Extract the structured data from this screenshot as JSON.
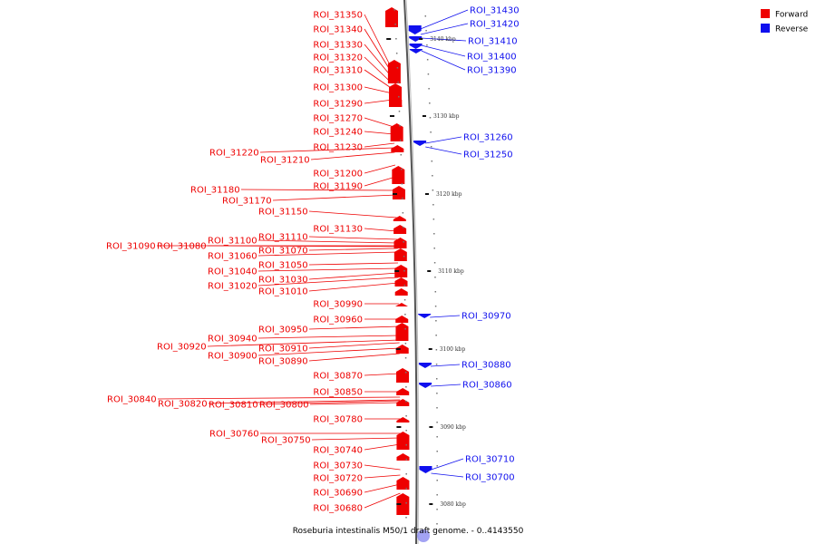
{
  "colors": {
    "forward": "#ee0000",
    "reverse": "#1010ee",
    "axis": "#888888"
  },
  "caption": "Roseburia intestinalis M50/1 draft genome. - 0..4143550",
  "legend": [
    {
      "label": "Forward",
      "color": "#ee0000"
    },
    {
      "label": "Reverse",
      "color": "#1010ee"
    }
  ],
  "ticks": [
    "3140 kbp",
    "3130 kbp",
    "3120 kbp",
    "3110 kbp",
    "3100 kbp",
    "3090 kbp",
    "3080 kbp"
  ],
  "forward_labels": [
    "ROI_31350",
    "ROI_31340",
    "ROI_31330",
    "ROI_31320",
    "ROI_31310",
    "ROI_31300",
    "ROI_31290",
    "ROI_31270",
    "ROI_31240",
    "ROI_31230",
    "ROI_31220",
    "ROI_31210",
    "ROI_31200",
    "ROI_31190",
    "ROI_31180",
    "ROI_31170",
    "ROI_31150",
    "ROI_31130",
    "ROI_31110",
    "ROI_31100",
    "ROI_31090",
    "ROI_31080",
    "ROI_31070",
    "ROI_31060",
    "ROI_31050",
    "ROI_31040",
    "ROI_31030",
    "ROI_31020",
    "ROI_31010",
    "ROI_30990",
    "ROI_30960",
    "ROI_30950",
    "ROI_30940",
    "ROI_30920",
    "ROI_30910",
    "ROI_30900",
    "ROI_30890",
    "ROI_30870",
    "ROI_30850",
    "ROI_30840",
    "ROI_30820",
    "ROI_30810",
    "ROI_30800",
    "ROI_30780",
    "ROI_30760",
    "ROI_30750",
    "ROI_30740",
    "ROI_30730",
    "ROI_30720",
    "ROI_30690",
    "ROI_30680"
  ],
  "reverse_labels": [
    "ROI_31430",
    "ROI_31420",
    "ROI_31410",
    "ROI_31400",
    "ROI_31390",
    "ROI_31260",
    "ROI_31250",
    "ROI_30970",
    "ROI_30880",
    "ROI_30860",
    "ROI_30710",
    "ROI_30700"
  ]
}
